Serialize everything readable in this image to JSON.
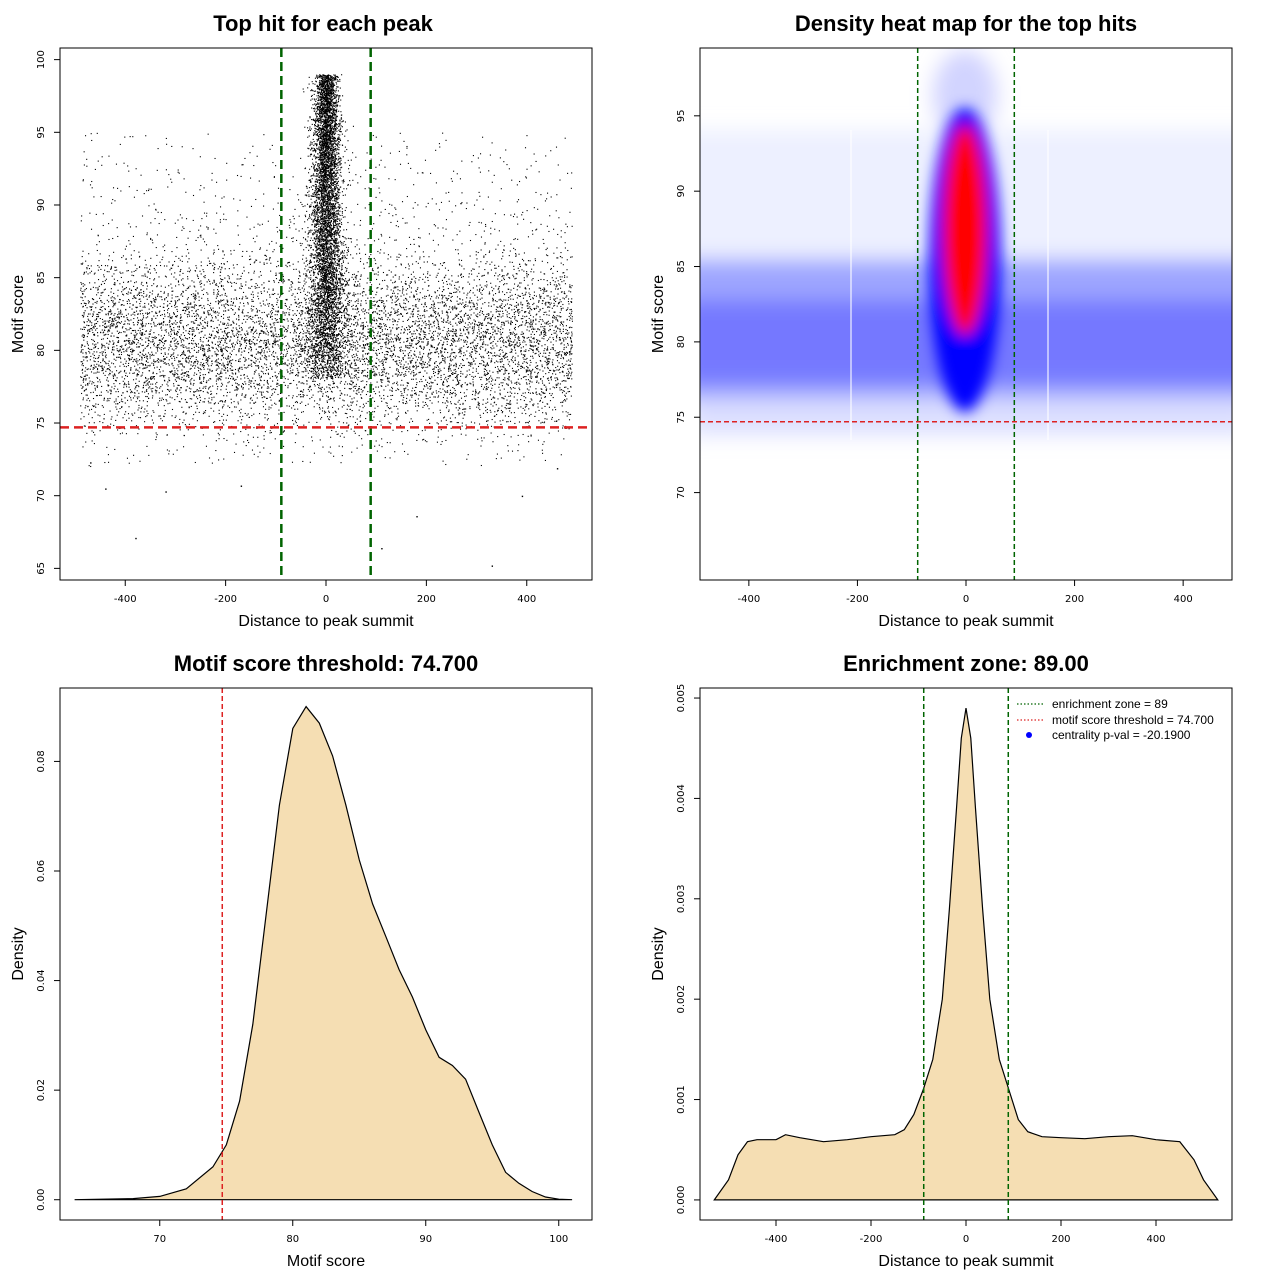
{
  "colors": {
    "zone_line": "#006400",
    "threshold_line": "#dd2222",
    "density_fill": "#f5deb3",
    "points": "#000000",
    "heat_low": "#ffffff",
    "heat_mid": "#0000ff",
    "heat_high": "#ff0000",
    "pval_point": "#0000ff"
  },
  "chart_data": [
    {
      "id": "scatter",
      "type": "scatter",
      "title": "Top hit for each peak",
      "xlabel": "Distance to peak summit",
      "ylabel": "Motif score",
      "xlim": [
        -530,
        530
      ],
      "ylim": [
        64.2,
        100.8
      ],
      "xticks": [
        -400,
        -200,
        0,
        200,
        400
      ],
      "yticks": [
        65,
        70,
        75,
        80,
        85,
        90,
        95,
        100
      ],
      "hline": 74.7,
      "vlines": [
        -89,
        89
      ],
      "clusters": [
        {
          "name": "background",
          "x_range": [
            -490,
            490
          ],
          "y_mean": 80.6,
          "y_sd": 3.1
        },
        {
          "name": "central",
          "x_center": 0,
          "x_sd": 22,
          "y_range": [
            78,
            99
          ]
        }
      ],
      "outliers": [
        [
          -380,
          67.1
        ],
        [
          -440,
          70.5
        ],
        [
          -170,
          70.7
        ],
        [
          330,
          65.2
        ],
        [
          180,
          68.6
        ],
        [
          110,
          66.4
        ],
        [
          390,
          70.0
        ],
        [
          -470,
          72.3
        ],
        [
          460,
          71.9
        ],
        [
          -320,
          70.3
        ]
      ]
    },
    {
      "id": "heatmap",
      "type": "heatmap",
      "title": "Density heat map for the top hits",
      "xlabel": "Distance to peak summit",
      "ylabel": "Motif score",
      "xlim": [
        -490,
        490
      ],
      "ylim": [
        64.2,
        99.5
      ],
      "xticks": [
        -400,
        -200,
        0,
        200,
        400
      ],
      "yticks": [
        70,
        75,
        80,
        85,
        90,
        95
      ],
      "hline": 74.7,
      "vlines": [
        -89,
        89
      ]
    },
    {
      "id": "score-density",
      "type": "area",
      "title": "Motif score threshold: 74.700",
      "xlabel": "Motif score",
      "ylabel": "Density",
      "xlim": [
        62.5,
        102.5
      ],
      "ylim": [
        -0.0037,
        0.0934
      ],
      "xticks": [
        70,
        80,
        90,
        100
      ],
      "yticks": [
        0.0,
        0.02,
        0.04,
        0.06,
        0.08
      ],
      "ytick_labels": [
        "0.00",
        "0.02",
        "0.04",
        "0.06",
        "0.08"
      ],
      "vline": 74.7,
      "x": [
        63.6,
        68,
        70,
        72,
        74,
        75,
        76,
        77,
        78,
        79,
        80,
        81,
        82,
        83,
        84,
        85,
        86,
        87,
        88,
        89,
        90,
        91,
        92,
        93,
        94,
        95,
        96,
        97,
        98,
        99,
        100,
        101
      ],
      "y": [
        0.0,
        0.0002,
        0.0006,
        0.002,
        0.006,
        0.01,
        0.018,
        0.032,
        0.052,
        0.072,
        0.086,
        0.09,
        0.087,
        0.081,
        0.072,
        0.062,
        0.054,
        0.048,
        0.042,
        0.037,
        0.031,
        0.026,
        0.0245,
        0.022,
        0.016,
        0.01,
        0.005,
        0.003,
        0.0015,
        0.0005,
        0.0001,
        0.0
      ]
    },
    {
      "id": "distance-density",
      "type": "area",
      "title": "Enrichment zone: 89.00",
      "xlabel": "Distance to peak summit",
      "ylabel": "Density",
      "xlim": [
        -560,
        560
      ],
      "ylim": [
        -0.0002,
        0.0051
      ],
      "xticks": [
        -400,
        -200,
        0,
        200,
        400
      ],
      "yticks": [
        0.0,
        0.001,
        0.002,
        0.003,
        0.004,
        0.005
      ],
      "ytick_labels": [
        "0.000",
        "0.001",
        "0.002",
        "0.003",
        "0.004",
        "0.005"
      ],
      "vlines": [
        -89,
        89
      ],
      "x": [
        -530,
        -500,
        -480,
        -460,
        -440,
        -400,
        -380,
        -350,
        -300,
        -250,
        -200,
        -150,
        -130,
        -110,
        -90,
        -70,
        -50,
        -35,
        -20,
        -10,
        0,
        10,
        20,
        35,
        50,
        70,
        90,
        110,
        130,
        160,
        200,
        250,
        300,
        350,
        400,
        450,
        480,
        500,
        530
      ],
      "y": [
        0.0,
        0.0002,
        0.00045,
        0.00058,
        0.0006,
        0.0006,
        0.00065,
        0.00062,
        0.00058,
        0.0006,
        0.00063,
        0.00065,
        0.0007,
        0.00085,
        0.0011,
        0.0014,
        0.002,
        0.0029,
        0.0039,
        0.0046,
        0.0049,
        0.0046,
        0.0039,
        0.0029,
        0.002,
        0.0014,
        0.0011,
        0.0008,
        0.00068,
        0.00063,
        0.00062,
        0.00061,
        0.00063,
        0.00064,
        0.0006,
        0.00058,
        0.0004,
        0.0002,
        0.0
      ],
      "legend": [
        {
          "label": "enrichment zone = 89",
          "style": "dotted-green"
        },
        {
          "label": "motif score threshold = 74.700",
          "style": "dotted-red"
        },
        {
          "label": "centrality p-val = -20.1900",
          "style": "dot-blue"
        }
      ]
    }
  ]
}
